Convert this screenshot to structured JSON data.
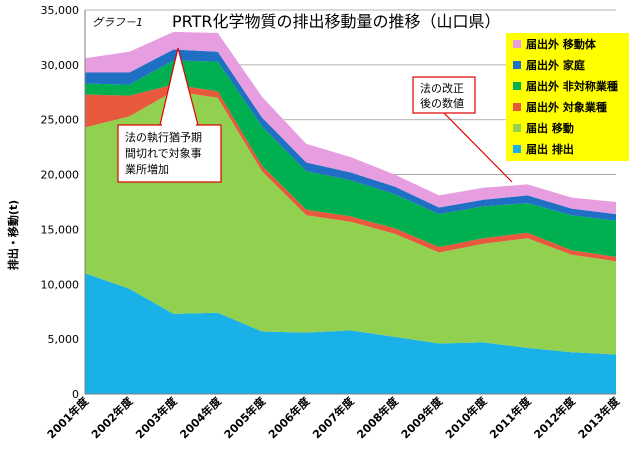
{
  "figure_tag": "グラフ－1",
  "title": "PRTR化学物質の排出移動量の推移（山口県）",
  "colors": {
    "届出排出": "#1ab0e8",
    "届出移動": "#92d050",
    "届出外対象業種": "#e8583c",
    "届出外非対象業種": "#00b050",
    "届出外家庭": "#1f6fc4",
    "届出外移動体": "#e69ee0",
    "legend_bg": "#ffff00",
    "callout_border": "#e00000"
  },
  "callouts": [
    {
      "lines": [
        "法の執行猶予期",
        "間切れで対象事",
        "業所増加"
      ]
    },
    {
      "lines": [
        "法の改正",
        "後の数値"
      ]
    }
  ],
  "chart_data": {
    "type": "area",
    "stacked": true,
    "title": "PRTR化学物質の排出移動量の推移（山口県）",
    "xlabel": "",
    "ylabel": "排出・移動(t)",
    "ylim": [
      0,
      35000
    ],
    "yticks": [
      "0",
      "5,000",
      "10,000",
      "15,000",
      "20,000",
      "25,000",
      "30,000",
      "35,000"
    ],
    "grid": true,
    "legend_position": "top-right",
    "categories": [
      "2001年度",
      "2002年度",
      "2003年度",
      "2004年度",
      "2005年度",
      "2006年度",
      "2007年度",
      "2008年度",
      "2009年度",
      "2010年度",
      "2011年度",
      "2012年度",
      "2013年度"
    ],
    "series": [
      {
        "name": "届出 排出",
        "values": [
          11000,
          9600,
          7300,
          7400,
          5700,
          5600,
          5800,
          5200,
          4600,
          4700,
          4200,
          3800,
          3600
        ]
      },
      {
        "name": "届出 移動",
        "values": [
          13300,
          15700,
          20300,
          19600,
          14600,
          10700,
          9900,
          9400,
          8300,
          9000,
          10000,
          8900,
          8500
        ]
      },
      {
        "name": "届出外 対象業種",
        "values": [
          3000,
          1900,
          600,
          600,
          500,
          500,
          500,
          500,
          500,
          500,
          500,
          400,
          400
        ]
      },
      {
        "name": "届出外 非対称業種",
        "values": [
          1000,
          1000,
          2200,
          2700,
          3600,
          3500,
          3300,
          3100,
          3000,
          2900,
          2700,
          3200,
          3300
        ]
      },
      {
        "name": "届出外 家庭",
        "values": [
          1000,
          1100,
          1000,
          900,
          800,
          800,
          700,
          700,
          600,
          600,
          700,
          600,
          600
        ]
      },
      {
        "name": "届出外 移動体",
        "values": [
          1300,
          1900,
          1600,
          1700,
          1900,
          1700,
          1400,
          1100,
          1100,
          1100,
          1000,
          1000,
          1100
        ]
      }
    ]
  }
}
